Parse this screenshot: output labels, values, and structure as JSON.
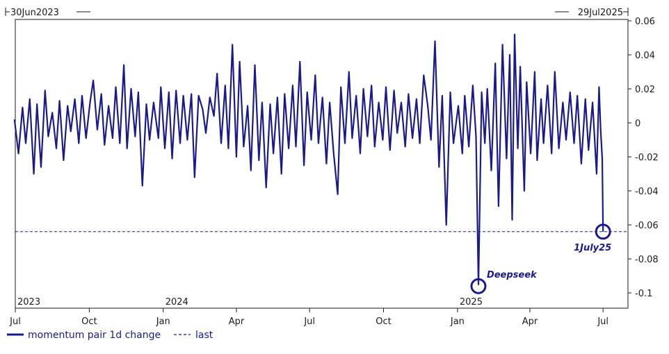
{
  "chart_data": {
    "type": "line",
    "range_start": "30Jun2023",
    "range_end": "29Jul2025",
    "x_range": [
      "2023-07-01",
      "2025-08-01"
    ],
    "ylim": [
      -0.105,
      0.06
    ],
    "y_ticks": [
      0.06,
      0.04,
      0.02,
      0,
      -0.02,
      -0.04,
      -0.06,
      -0.08,
      -0.1
    ],
    "y_tick_labels": [
      "0.06",
      "0.04",
      "0.02",
      "0",
      "-0.02",
      "-0.04",
      "-0.06",
      "-0.08",
      "-0.1"
    ],
    "x_ticks": [
      {
        "date": "2023-07-01",
        "label": "Jul"
      },
      {
        "date": "2023-10-01",
        "label": "Oct"
      },
      {
        "date": "2024-01-01",
        "label": "Jan"
      },
      {
        "date": "2024-04-01",
        "label": "Apr"
      },
      {
        "date": "2024-07-01",
        "label": "Jul"
      },
      {
        "date": "2024-10-01",
        "label": "Oct"
      },
      {
        "date": "2025-01-01",
        "label": "Jan"
      },
      {
        "date": "2025-04-01",
        "label": "Apr"
      },
      {
        "date": "2025-07-01",
        "label": "Jul"
      }
    ],
    "year_labels": [
      {
        "date": "2023-07-01",
        "label": "2023"
      },
      {
        "date": "2024-01-01",
        "label": "2024"
      },
      {
        "date": "2025-01-01",
        "label": "2025"
      }
    ],
    "grid": false,
    "legend_position": "bottom-left",
    "series": [
      {
        "name": "momentum pair 1d change",
        "color": "#1a1a8c",
        "style": "solid",
        "points": [
          [
            "2023-06-30",
            0.002
          ],
          [
            "2023-07-05",
            -0.018
          ],
          [
            "2023-07-10",
            0.009
          ],
          [
            "2023-07-14",
            -0.012
          ],
          [
            "2023-07-19",
            0.014
          ],
          [
            "2023-07-24",
            -0.03
          ],
          [
            "2023-07-28",
            0.011
          ],
          [
            "2023-08-02",
            -0.026
          ],
          [
            "2023-08-07",
            0.019
          ],
          [
            "2023-08-11",
            -0.008
          ],
          [
            "2023-08-16",
            0.006
          ],
          [
            "2023-08-21",
            -0.015
          ],
          [
            "2023-08-25",
            0.013
          ],
          [
            "2023-08-30",
            -0.022
          ],
          [
            "2023-09-04",
            0.01
          ],
          [
            "2023-09-08",
            -0.005
          ],
          [
            "2023-09-13",
            0.014
          ],
          [
            "2023-09-18",
            -0.012
          ],
          [
            "2023-09-22",
            0.016
          ],
          [
            "2023-09-27",
            -0.009
          ],
          [
            "2023-10-02",
            0.012
          ],
          [
            "2023-10-06",
            0.025
          ],
          [
            "2023-10-11",
            -0.004
          ],
          [
            "2023-10-16",
            0.017
          ],
          [
            "2023-10-20",
            -0.013
          ],
          [
            "2023-10-25",
            0.01
          ],
          [
            "2023-10-30",
            -0.009
          ],
          [
            "2023-11-03",
            0.021
          ],
          [
            "2023-11-08",
            -0.012
          ],
          [
            "2023-11-13",
            0.034
          ],
          [
            "2023-11-17",
            -0.015
          ],
          [
            "2023-11-22",
            0.02
          ],
          [
            "2023-11-27",
            -0.008
          ],
          [
            "2023-12-01",
            0.018
          ],
          [
            "2023-12-06",
            -0.037
          ],
          [
            "2023-12-11",
            0.011
          ],
          [
            "2023-12-15",
            -0.01
          ],
          [
            "2023-12-20",
            0.012
          ],
          [
            "2023-12-26",
            -0.009
          ],
          [
            "2023-12-29",
            0.021
          ],
          [
            "2024-01-03",
            -0.015
          ],
          [
            "2024-01-08",
            0.018
          ],
          [
            "2024-01-12",
            -0.021
          ],
          [
            "2024-01-17",
            0.019
          ],
          [
            "2024-01-22",
            -0.012
          ],
          [
            "2024-01-26",
            0.016
          ],
          [
            "2024-01-31",
            -0.01
          ],
          [
            "2024-02-05",
            0.017
          ],
          [
            "2024-02-09",
            -0.032
          ],
          [
            "2024-02-14",
            0.016
          ],
          [
            "2024-02-19",
            0.008
          ],
          [
            "2024-02-23",
            -0.006
          ],
          [
            "2024-02-28",
            0.015
          ],
          [
            "2024-03-04",
            0.004
          ],
          [
            "2024-03-08",
            0.029
          ],
          [
            "2024-03-13",
            -0.012
          ],
          [
            "2024-03-18",
            0.022
          ],
          [
            "2024-03-22",
            -0.015
          ],
          [
            "2024-03-27",
            0.046
          ],
          [
            "2024-04-01",
            -0.02
          ],
          [
            "2024-04-05",
            0.036
          ],
          [
            "2024-04-10",
            -0.014
          ],
          [
            "2024-04-15",
            0.01
          ],
          [
            "2024-04-19",
            -0.028
          ],
          [
            "2024-04-24",
            0.034
          ],
          [
            "2024-04-29",
            -0.022
          ],
          [
            "2024-05-03",
            0.012
          ],
          [
            "2024-05-08",
            -0.038
          ],
          [
            "2024-05-13",
            0.011
          ],
          [
            "2024-05-17",
            -0.018
          ],
          [
            "2024-05-22",
            0.015
          ],
          [
            "2024-05-27",
            -0.03
          ],
          [
            "2024-05-31",
            0.017
          ],
          [
            "2024-06-05",
            -0.015
          ],
          [
            "2024-06-10",
            0.022
          ],
          [
            "2024-06-14",
            -0.014
          ],
          [
            "2024-06-19",
            0.036
          ],
          [
            "2024-06-24",
            -0.025
          ],
          [
            "2024-06-28",
            0.018
          ],
          [
            "2024-07-03",
            -0.01
          ],
          [
            "2024-07-08",
            0.028
          ],
          [
            "2024-07-12",
            -0.012
          ],
          [
            "2024-07-17",
            0.015
          ],
          [
            "2024-07-22",
            -0.024
          ],
          [
            "2024-07-26",
            0.012
          ],
          [
            "2024-07-31",
            -0.018
          ],
          [
            "2024-08-05",
            -0.042
          ],
          [
            "2024-08-09",
            0.021
          ],
          [
            "2024-08-14",
            -0.012
          ],
          [
            "2024-08-19",
            0.03
          ],
          [
            "2024-08-23",
            -0.009
          ],
          [
            "2024-08-28",
            0.016
          ],
          [
            "2024-09-02",
            -0.018
          ],
          [
            "2024-09-06",
            0.02
          ],
          [
            "2024-09-11",
            -0.008
          ],
          [
            "2024-09-16",
            0.022
          ],
          [
            "2024-09-20",
            -0.014
          ],
          [
            "2024-09-25",
            0.012
          ],
          [
            "2024-09-30",
            -0.01
          ],
          [
            "2024-10-04",
            0.021
          ],
          [
            "2024-10-09",
            -0.016
          ],
          [
            "2024-10-14",
            0.019
          ],
          [
            "2024-10-18",
            -0.006
          ],
          [
            "2024-10-23",
            0.012
          ],
          [
            "2024-10-28",
            -0.014
          ],
          [
            "2024-11-01",
            0.017
          ],
          [
            "2024-11-06",
            -0.009
          ],
          [
            "2024-11-11",
            0.014
          ],
          [
            "2024-11-15",
            -0.012
          ],
          [
            "2024-11-20",
            0.028
          ],
          [
            "2024-11-25",
            0.01
          ],
          [
            "2024-11-29",
            -0.01
          ],
          [
            "2024-12-04",
            0.048
          ],
          [
            "2024-12-09",
            -0.026
          ],
          [
            "2024-12-13",
            0.016
          ],
          [
            "2024-12-18",
            -0.06
          ],
          [
            "2024-12-23",
            0.018
          ],
          [
            "2024-12-27",
            -0.012
          ],
          [
            "2025-01-02",
            0.01
          ],
          [
            "2025-01-07",
            -0.018
          ],
          [
            "2025-01-10",
            0.016
          ],
          [
            "2025-01-15",
            -0.014
          ],
          [
            "2025-01-20",
            0.022
          ],
          [
            "2025-01-24",
            -0.008
          ],
          [
            "2025-01-27",
            -0.095
          ],
          [
            "2025-01-31",
            0.018
          ],
          [
            "2025-02-04",
            -0.012
          ],
          [
            "2025-02-07",
            0.02
          ],
          [
            "2025-02-12",
            -0.028
          ],
          [
            "2025-02-17",
            0.035
          ],
          [
            "2025-02-21",
            -0.049
          ],
          [
            "2025-02-26",
            0.046
          ],
          [
            "2025-03-03",
            -0.021
          ],
          [
            "2025-03-07",
            0.04
          ],
          [
            "2025-03-10",
            -0.057
          ],
          [
            "2025-03-13",
            0.052
          ],
          [
            "2025-03-17",
            -0.015
          ],
          [
            "2025-03-20",
            0.033
          ],
          [
            "2025-03-25",
            -0.04
          ],
          [
            "2025-03-28",
            0.024
          ],
          [
            "2025-04-02",
            -0.018
          ],
          [
            "2025-04-07",
            0.03
          ],
          [
            "2025-04-10",
            -0.022
          ],
          [
            "2025-04-15",
            0.014
          ],
          [
            "2025-04-18",
            -0.012
          ],
          [
            "2025-04-23",
            0.022
          ],
          [
            "2025-04-28",
            -0.018
          ],
          [
            "2025-05-02",
            0.03
          ],
          [
            "2025-05-07",
            -0.015
          ],
          [
            "2025-05-12",
            0.012
          ],
          [
            "2025-05-16",
            -0.01
          ],
          [
            "2025-05-21",
            0.018
          ],
          [
            "2025-05-26",
            -0.012
          ],
          [
            "2025-05-30",
            0.016
          ],
          [
            "2025-06-04",
            -0.024
          ],
          [
            "2025-06-09",
            0.014
          ],
          [
            "2025-06-13",
            -0.016
          ],
          [
            "2025-06-18",
            0.012
          ],
          [
            "2025-06-23",
            -0.03
          ],
          [
            "2025-06-26",
            0.021
          ],
          [
            "2025-06-28",
            -0.004
          ],
          [
            "2025-06-30",
            -0.021
          ],
          [
            "2025-07-01",
            -0.064
          ]
        ]
      },
      {
        "name": "last",
        "color": "#1a1a8c",
        "style": "dashed",
        "y": -0.064
      }
    ],
    "annotations": [
      {
        "label": "Deepseek",
        "date": "2025-01-27",
        "y": -0.096
      },
      {
        "label": "1July25",
        "date": "2025-07-01",
        "y": -0.064
      }
    ]
  }
}
